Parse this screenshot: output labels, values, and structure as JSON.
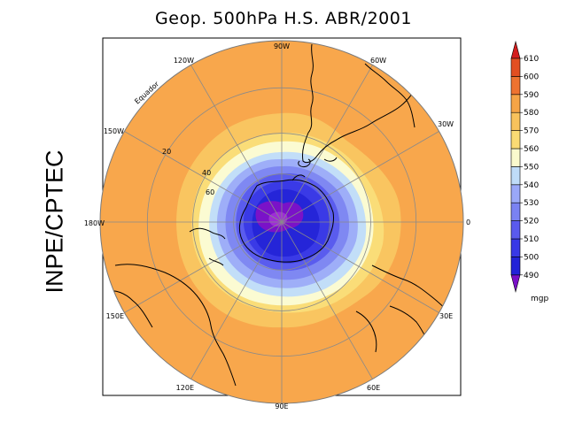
{
  "title": "Geop. 500hPa H.S. ABR/2001",
  "side_label": "INPE/CPTEC",
  "equator_label": "Equador",
  "longitude_labels": {
    "l0": "0",
    "l30w": "30W",
    "l60w": "60W",
    "l90w": "90W",
    "l120w": "120W",
    "l150w": "150W",
    "l180w": "180W",
    "l150e": "150E",
    "l120e": "120E",
    "l90e": "90E",
    "l60e": "60E",
    "l30e": "30E"
  },
  "latitude_labels": {
    "lat20": "20",
    "lat40": "40",
    "lat60": "60"
  },
  "colorbar": {
    "unit": "mgp",
    "levels": [
      "490",
      "500",
      "510",
      "520",
      "530",
      "540",
      "550",
      "560",
      "570",
      "580",
      "590",
      "600",
      "610"
    ],
    "colors": [
      "#7a10c8",
      "#2222d8",
      "#3838e6",
      "#5a5aee",
      "#7a82f2",
      "#9aa8f8",
      "#bfdcf8",
      "#fafacd",
      "#fadb74",
      "#f8c25c",
      "#f5a446",
      "#ee7330",
      "#e24f22",
      "#d41d1d"
    ]
  }
}
